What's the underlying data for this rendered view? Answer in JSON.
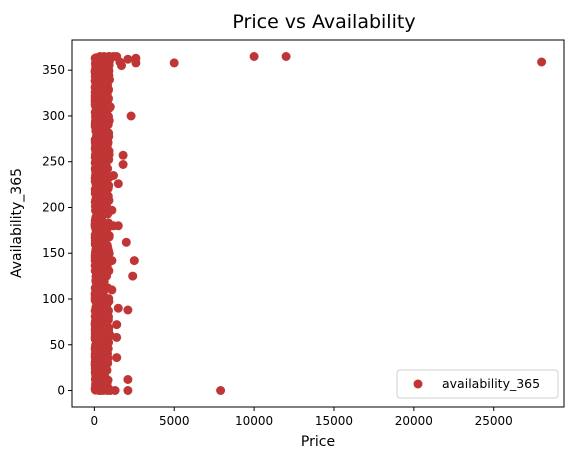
{
  "chart_data": {
    "type": "scatter",
    "title": "Price vs Availability",
    "xlabel": "Price",
    "ylabel": "Availability_365",
    "xlim": [
      -1400,
      29400
    ],
    "ylim": [
      -18,
      383
    ],
    "xticks": [
      0,
      5000,
      10000,
      15000,
      20000,
      25000
    ],
    "yticks": [
      0,
      50,
      100,
      150,
      200,
      250,
      300,
      350
    ],
    "grid": false,
    "legend_position": "lower-right",
    "series": [
      {
        "name": "availability_365",
        "color": "#c03535",
        "points": [
          [
            28000,
            359
          ],
          [
            12000,
            365
          ],
          [
            10000,
            365
          ],
          [
            5000,
            358
          ],
          [
            7900,
            0
          ],
          [
            2600,
            363
          ],
          [
            2600,
            358
          ],
          [
            2500,
            142
          ],
          [
            2400,
            125
          ],
          [
            2300,
            300
          ],
          [
            2100,
            362
          ],
          [
            2100,
            88
          ],
          [
            2100,
            12
          ],
          [
            2100,
            0
          ],
          [
            2000,
            162
          ],
          [
            1800,
            257
          ],
          [
            1800,
            247
          ],
          [
            1700,
            355
          ],
          [
            1600,
            359
          ],
          [
            1500,
            226
          ],
          [
            1500,
            180
          ],
          [
            1500,
            90
          ],
          [
            1400,
            72
          ],
          [
            1400,
            58
          ],
          [
            1400,
            36
          ],
          [
            1300,
            0
          ],
          [
            1200,
            235
          ],
          [
            1200,
            180
          ],
          [
            1100,
            197
          ],
          [
            1100,
            110
          ],
          [
            1100,
            142
          ],
          [
            1000,
            310
          ],
          [
            1000,
            60
          ],
          [
            1000,
            0
          ],
          [
            350,
            365
          ],
          [
            600,
            365
          ],
          [
            900,
            365
          ],
          [
            1200,
            365
          ],
          [
            1400,
            365
          ]
        ]
      }
    ]
  }
}
